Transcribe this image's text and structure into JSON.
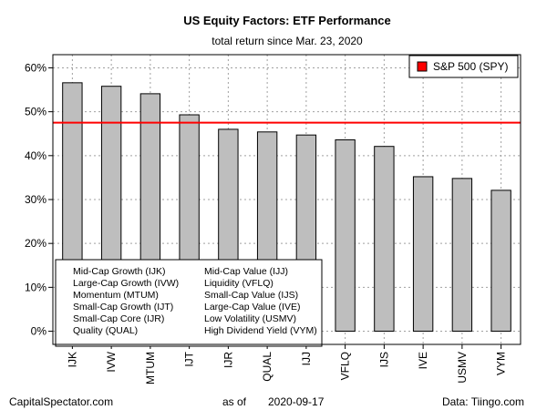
{
  "chart_data": {
    "type": "bar",
    "title": "US Equity Factors: ETF Performance",
    "subtitle": "total return since Mar. 23, 2020",
    "categories": [
      "IJK",
      "IVW",
      "MTUM",
      "IJT",
      "IJR",
      "QUAL",
      "IJJ",
      "VFLQ",
      "IJS",
      "IVE",
      "USMV",
      "VYM"
    ],
    "values": [
      56.6,
      55.8,
      54.1,
      49.3,
      46.0,
      45.4,
      44.7,
      43.6,
      42.1,
      35.2,
      34.8,
      32.1
    ],
    "unit": "%",
    "ylim": [
      -3,
      63
    ],
    "yticks": [
      0,
      10,
      20,
      30,
      40,
      50,
      60
    ],
    "ytick_labels": [
      "0%",
      "10%",
      "20%",
      "30%",
      "40%",
      "50%",
      "60%"
    ],
    "grid": true,
    "bar_color": "#bebebe",
    "reference_line": {
      "name": "S&P 500 (SPY)",
      "value": 47.5,
      "color": "#ff0000"
    },
    "legend": {
      "placement": "top-right",
      "entries": [
        "S&P 500 (SPY)"
      ]
    },
    "notes_left": [
      "Mid-Cap Growth (IJK)",
      "Large-Cap Growth (IVW)",
      "Momentum (MTUM)",
      "Small-Cap Growth (IJT)",
      "Small-Cap Core (IJR)",
      "Quality (QUAL)"
    ],
    "notes_right": [
      "Mid-Cap Value (IJJ)",
      "Liquidity (VFLQ)",
      "Small-Cap Value (IJS)",
      "Large-Cap Value (IVE)",
      "Low Volatility (USMV)",
      "High Dividend Yield (VYM)"
    ]
  },
  "footer": {
    "left": "CapitalSpectator.com",
    "as_of_label": "as of",
    "date": "2020-09-17",
    "right": "Data: Tiingo.com"
  }
}
